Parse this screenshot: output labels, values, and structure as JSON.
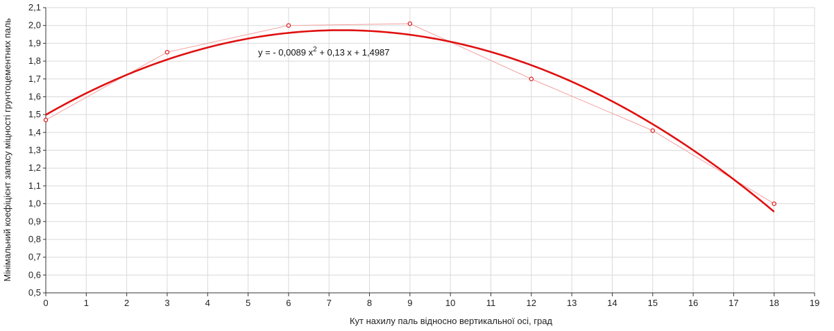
{
  "chart_data": {
    "type": "scatter",
    "title": "",
    "xlabel": "Кут нахилу паль відносно вертикальної осі, град",
    "ylabel": "Мінімальний коефіцієнт запасу міцності грунтоцементних паль",
    "xlim": [
      0,
      19
    ],
    "ylim": [
      0.5,
      2.1
    ],
    "x_ticks": [
      "0",
      "1",
      "2",
      "3",
      "4",
      "5",
      "6",
      "7",
      "8",
      "9",
      "10",
      "11",
      "12",
      "13",
      "14",
      "15",
      "16",
      "17",
      "18",
      "19"
    ],
    "y_ticks": [
      "0,5",
      "0,6",
      "0,7",
      "0,8",
      "0,9",
      "1,0",
      "1,1",
      "1,2",
      "1,3",
      "1,4",
      "1,5",
      "1,6",
      "1,7",
      "1,8",
      "1,9",
      "2,0",
      "2,1"
    ],
    "grid": true,
    "series": [
      {
        "x": [
          0,
          3,
          6,
          9,
          12,
          15,
          18
        ],
        "y": [
          1.47,
          1.85,
          2.0,
          2.01,
          1.7,
          1.41,
          1.0
        ],
        "color": "#f4a0a0",
        "marker_color": "#e02020"
      }
    ],
    "trendline": {
      "type": "polynomial",
      "a": -0.0089,
      "b": 0.13,
      "c": 1.4987,
      "x_range": [
        0,
        18
      ],
      "color": "#e01010"
    },
    "annotation": {
      "prefix": "y = - 0,0089 x",
      "sup": "2",
      "suffix": " + 0,13 x + 1,4987"
    }
  }
}
